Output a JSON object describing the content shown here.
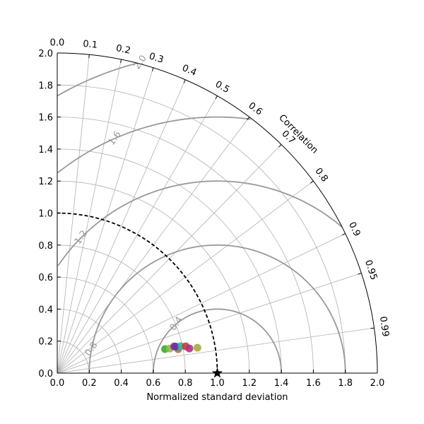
{
  "chart_data": {
    "type": "scatter",
    "subtype": "taylor_diagram",
    "xlabel": "Normalized standard deviation",
    "angular_label": "Correlation",
    "std_range": [
      0.0,
      2.0
    ],
    "std_ticks": [
      "0.0",
      "0.2",
      "0.4",
      "0.6",
      "0.8",
      "1.0",
      "1.2",
      "1.4",
      "1.6",
      "1.8",
      "2.0"
    ],
    "correlation_ticks": [
      "0.0",
      "0.1",
      "0.2",
      "0.3",
      "0.4",
      "0.5",
      "0.6",
      "0.7",
      "0.8",
      "0.9",
      "0.95",
      "0.99"
    ],
    "reference": {
      "std": 1.0,
      "correlation": 1.0,
      "marker": "star"
    },
    "reference_std_arc": 1.0,
    "rms_contours": [
      {
        "level": 0.4,
        "label": "0.4"
      },
      {
        "level": 0.8,
        "label": "0.8"
      },
      {
        "level": 1.2,
        "label": "1.2"
      },
      {
        "level": 1.6,
        "label": "1.6"
      },
      {
        "level": 2.0,
        "label": "2.0"
      }
    ],
    "grid": true,
    "points": [
      {
        "std": 0.69,
        "correlation": 0.976,
        "color": "#3aaa35"
      },
      {
        "std": 0.72,
        "correlation": 0.977,
        "color": "#8cbf3f"
      },
      {
        "std": 0.77,
        "correlation": 0.981,
        "color": "#b5733a"
      },
      {
        "std": 0.76,
        "correlation": 0.976,
        "color": "#2c5fa8"
      },
      {
        "std": 0.79,
        "correlation": 0.977,
        "color": "#2fb5b0"
      },
      {
        "std": 0.75,
        "correlation": 0.975,
        "color": "#7a2f9e"
      },
      {
        "std": 0.82,
        "correlation": 0.979,
        "color": "#c2412f"
      },
      {
        "std": 0.84,
        "correlation": 0.983,
        "color": "#b0308a"
      },
      {
        "std": 0.89,
        "correlation": 0.984,
        "color": "#a8a840"
      }
    ],
    "colors": {
      "grid": "#b0b0b0",
      "rms_contour": "#999999",
      "axis": "#000000"
    }
  }
}
